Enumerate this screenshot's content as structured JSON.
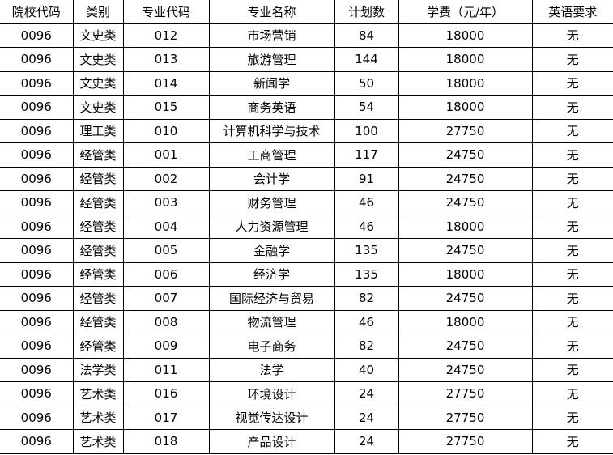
{
  "headers": [
    "院校代码",
    "类别",
    "专业代码",
    "专业名称",
    "计划数",
    "学费（元/年）",
    "英语要求"
  ],
  "rows": [
    [
      "0096",
      "文史类",
      "012",
      "市场营销",
      "84",
      "18000",
      "无"
    ],
    [
      "0096",
      "文史类",
      "013",
      "旅游管理",
      "144",
      "18000",
      "无"
    ],
    [
      "0096",
      "文史类",
      "014",
      "新闻学",
      "50",
      "18000",
      "无"
    ],
    [
      "0096",
      "文史类",
      "015",
      "商务英语",
      "54",
      "18000",
      "无"
    ],
    [
      "0096",
      "理工类",
      "010",
      "计算机科学与技术",
      "100",
      "27750",
      "无"
    ],
    [
      "0096",
      "经管类",
      "001",
      "工商管理",
      "117",
      "24750",
      "无"
    ],
    [
      "0096",
      "经管类",
      "002",
      "会计学",
      "91",
      "24750",
      "无"
    ],
    [
      "0096",
      "经管类",
      "003",
      "财务管理",
      "46",
      "24750",
      "无"
    ],
    [
      "0096",
      "经管类",
      "004",
      "人力资源管理",
      "46",
      "18000",
      "无"
    ],
    [
      "0096",
      "经管类",
      "005",
      "金融学",
      "135",
      "24750",
      "无"
    ],
    [
      "0096",
      "经管类",
      "006",
      "经济学",
      "135",
      "18000",
      "无"
    ],
    [
      "0096",
      "经管类",
      "007",
      "国际经济与贸易",
      "82",
      "24750",
      "无"
    ],
    [
      "0096",
      "经管类",
      "008",
      "物流管理",
      "46",
      "18000",
      "无"
    ],
    [
      "0096",
      "经管类",
      "009",
      "电子商务",
      "82",
      "24750",
      "无"
    ],
    [
      "0096",
      "法学类",
      "011",
      "法学",
      "40",
      "24750",
      "无"
    ],
    [
      "0096",
      "艺术类",
      "016",
      "环境设计",
      "24",
      "27750",
      "无"
    ],
    [
      "0096",
      "艺术类",
      "017",
      "视觉传达设计",
      "24",
      "27750",
      "无"
    ],
    [
      "0096",
      "艺术类",
      "018",
      "产品设计",
      "24",
      "27750",
      "无"
    ]
  ]
}
